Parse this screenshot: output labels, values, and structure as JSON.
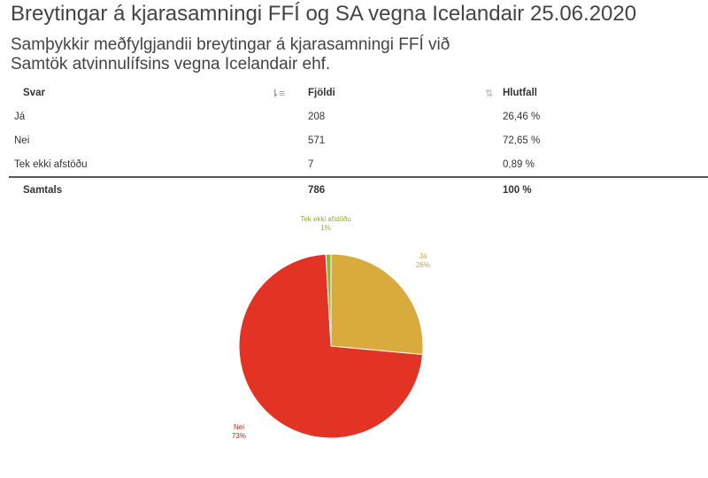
{
  "header": {
    "title": "Breytingar á kjarasamningi FFÍ og SA vegna Icelandair 25.06.2020",
    "question": "Samþykkir meðfylgjandii breytingar á kjarasamningi FFÍ við Samtök atvinnulífsins vegna Icelandair ehf."
  },
  "table": {
    "columns": [
      {
        "label": "Svar",
        "sort_icon": "sort-amount-icon"
      },
      {
        "label": "Fjöldi",
        "sort_icon": "sort-both-icon"
      },
      {
        "label": "Hlutfall",
        "sort_icon": "sort-down-icon"
      }
    ],
    "rows": [
      {
        "svar": "Já",
        "fjoldi": "208",
        "hlutfall": "26,46 %"
      },
      {
        "svar": "Nei",
        "fjoldi": "571",
        "hlutfall": "72,65 %"
      },
      {
        "svar": "Tek ekki afstöðu",
        "fjoldi": "7",
        "hlutfall": "0,89 %"
      }
    ],
    "total": {
      "label": "Samtals",
      "fjoldi": "786",
      "hlutfall": "100 %"
    }
  },
  "chart_data": {
    "type": "pie",
    "title": "",
    "categories": [
      "Já",
      "Nei",
      "Tek ekki afstöðu"
    ],
    "values": [
      208,
      571,
      7
    ],
    "percent_labels": [
      "26%",
      "73%",
      "1%"
    ],
    "colors": [
      "#d9ab3c",
      "#e33325",
      "#8db33a"
    ],
    "label_colors": [
      "#c9a832",
      "#b02a20",
      "#9aa72e"
    ],
    "legend": "none",
    "labels_outside": true
  }
}
